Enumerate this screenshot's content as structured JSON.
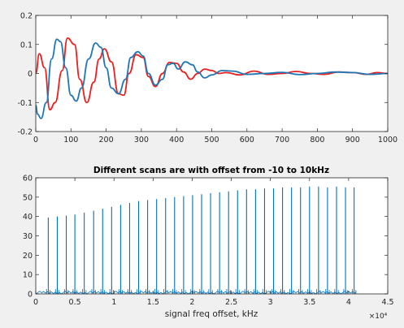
{
  "chart_data": [
    {
      "type": "line",
      "title": "",
      "xlabel": "",
      "ylabel": "",
      "xlim": [
        0,
        1000
      ],
      "ylim": [
        -0.2,
        0.2
      ],
      "x_ticks": [
        0,
        100,
        200,
        300,
        400,
        500,
        600,
        700,
        800,
        900,
        1000
      ],
      "y_ticks": [
        -0.2,
        -0.1,
        0,
        0.1,
        0.2
      ],
      "x_tick_labels": [
        "0",
        "100",
        "200",
        "300",
        "400",
        "500",
        "600",
        "700",
        "800",
        "900",
        "1000"
      ],
      "y_tick_labels": [
        "-0.2",
        "-0.1",
        "0",
        "0.1",
        "0.2"
      ],
      "grid": false,
      "series": [
        {
          "color": "#e8201f",
          "x": [
            0,
            10,
            25,
            40,
            55,
            75,
            90,
            110,
            125,
            145,
            165,
            180,
            195,
            215,
            235,
            250,
            265,
            285,
            305,
            320,
            340,
            360,
            380,
            400,
            420,
            440,
            460,
            480,
            500,
            520,
            540,
            580,
            620,
            660,
            700,
            740,
            780,
            820,
            860,
            900,
            940,
            970,
            1000
          ],
          "y": [
            0.0,
            0.068,
            0.02,
            -0.125,
            -0.1,
            0.01,
            0.122,
            0.1,
            -0.02,
            -0.1,
            -0.03,
            0.05,
            0.085,
            0.04,
            -0.07,
            -0.075,
            0.0,
            0.065,
            0.055,
            -0.01,
            -0.045,
            0.0,
            0.038,
            0.035,
            0.005,
            -0.02,
            0.0,
            0.015,
            0.01,
            0.0,
            0.003,
            -0.005,
            0.008,
            -0.003,
            0.0,
            0.007,
            0.0,
            -0.003,
            0.005,
            0.003,
            -0.003,
            0.003,
            0.0
          ]
        },
        {
          "color": "#1f77b4",
          "x": [
            0,
            5,
            15,
            30,
            45,
            60,
            70,
            85,
            100,
            115,
            130,
            150,
            170,
            185,
            200,
            215,
            235,
            255,
            270,
            290,
            305,
            320,
            340,
            360,
            375,
            390,
            405,
            425,
            445,
            460,
            480,
            500,
            530,
            560,
            600,
            650,
            700,
            750,
            800,
            850,
            900,
            950,
            1000
          ],
          "y": [
            -0.11,
            -0.14,
            -0.155,
            -0.1,
            0.05,
            0.118,
            0.11,
            0.02,
            -0.075,
            -0.095,
            -0.05,
            0.05,
            0.105,
            0.09,
            0.02,
            -0.05,
            -0.07,
            -0.02,
            0.055,
            0.075,
            0.06,
            0.0,
            -0.04,
            -0.02,
            0.03,
            0.035,
            0.015,
            0.04,
            0.03,
            0.005,
            -0.015,
            -0.005,
            0.01,
            0.008,
            -0.003,
            0.0,
            0.004,
            -0.004,
            0.0,
            0.005,
            0.003,
            -0.003,
            0.0
          ]
        }
      ]
    },
    {
      "type": "line",
      "title": "Different scans are with offset from -10 to 10kHz",
      "xlabel": "signal freq offset, kHz",
      "ylabel": "",
      "xlim": [
        0,
        45000
      ],
      "ylim": [
        0,
        60
      ],
      "x_ticks": [
        0,
        5000,
        10000,
        15000,
        20000,
        25000,
        30000,
        35000,
        40000,
        45000
      ],
      "y_ticks": [
        0,
        10,
        20,
        30,
        40,
        50,
        60
      ],
      "x_tick_labels": [
        "0",
        "0.5",
        "1",
        "1.5",
        "2",
        "2.5",
        "3",
        "3.5",
        "4",
        "4.5"
      ],
      "y_tick_labels": [
        "0",
        "10",
        "20",
        "30",
        "40",
        "50",
        "60"
      ],
      "x_exponent_label": "×10⁴",
      "grid": false,
      "series": [
        {
          "color": "#0072bd",
          "peak_x": [
            1600,
            2750,
            3900,
            5000,
            6200,
            7400,
            8550,
            9700,
            10850,
            12000,
            13150,
            14300,
            15450,
            16600,
            17750,
            18900,
            20050,
            21200,
            22350,
            23500,
            24650,
            25800,
            26950,
            28100,
            29250,
            30400,
            31550,
            32700,
            33850,
            35000,
            36150,
            37300,
            38450,
            39600,
            40700
          ],
          "peak_y": [
            39.5,
            40,
            40.5,
            41,
            42,
            43,
            44,
            45,
            46,
            47,
            48,
            48.5,
            49,
            49.5,
            50,
            50.5,
            51,
            51.5,
            52,
            52.5,
            53,
            53.5,
            54,
            54,
            54.5,
            54.5,
            55,
            55,
            55,
            55.5,
            55.5,
            55,
            55.5,
            55,
            55
          ],
          "noise_floor": 1.5
        }
      ]
    }
  ]
}
